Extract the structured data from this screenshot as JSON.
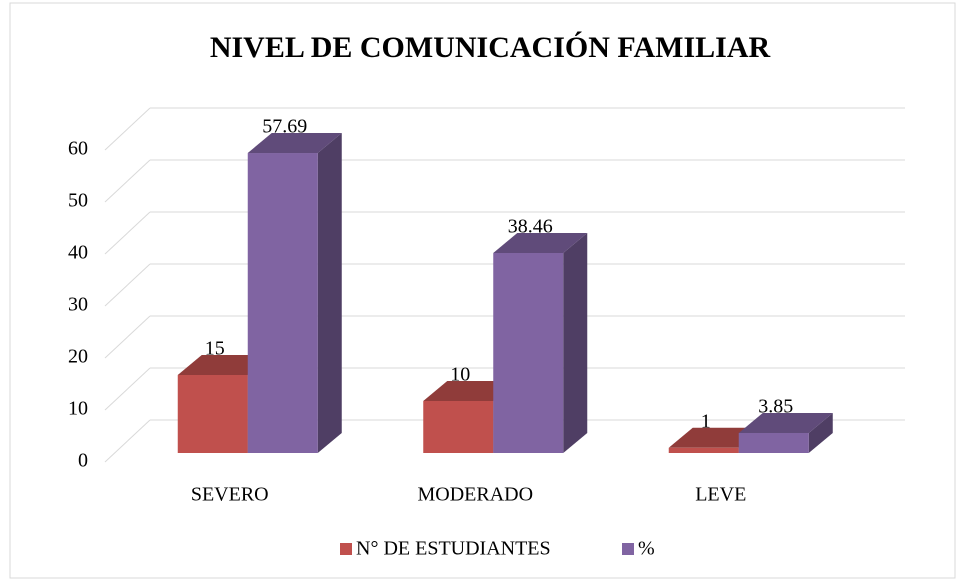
{
  "chart_data": {
    "type": "bar",
    "title": "NIVEL DE COMUNICACIÓN  FAMILIAR",
    "categories": [
      "SEVERO",
      "MODERADO",
      "LEVE"
    ],
    "series": [
      {
        "name": "N° DE ESTUDIANTES",
        "color": "#c0504d",
        "values": [
          15,
          10,
          1
        ]
      },
      {
        "name": "%",
        "color": "#8064a2",
        "values": [
          57.69,
          38.46,
          3.85
        ]
      }
    ],
    "ylim": [
      0,
      60
    ],
    "yticks": [
      0,
      10,
      20,
      30,
      40,
      50,
      60
    ],
    "grid": true,
    "legend": "bottom"
  }
}
